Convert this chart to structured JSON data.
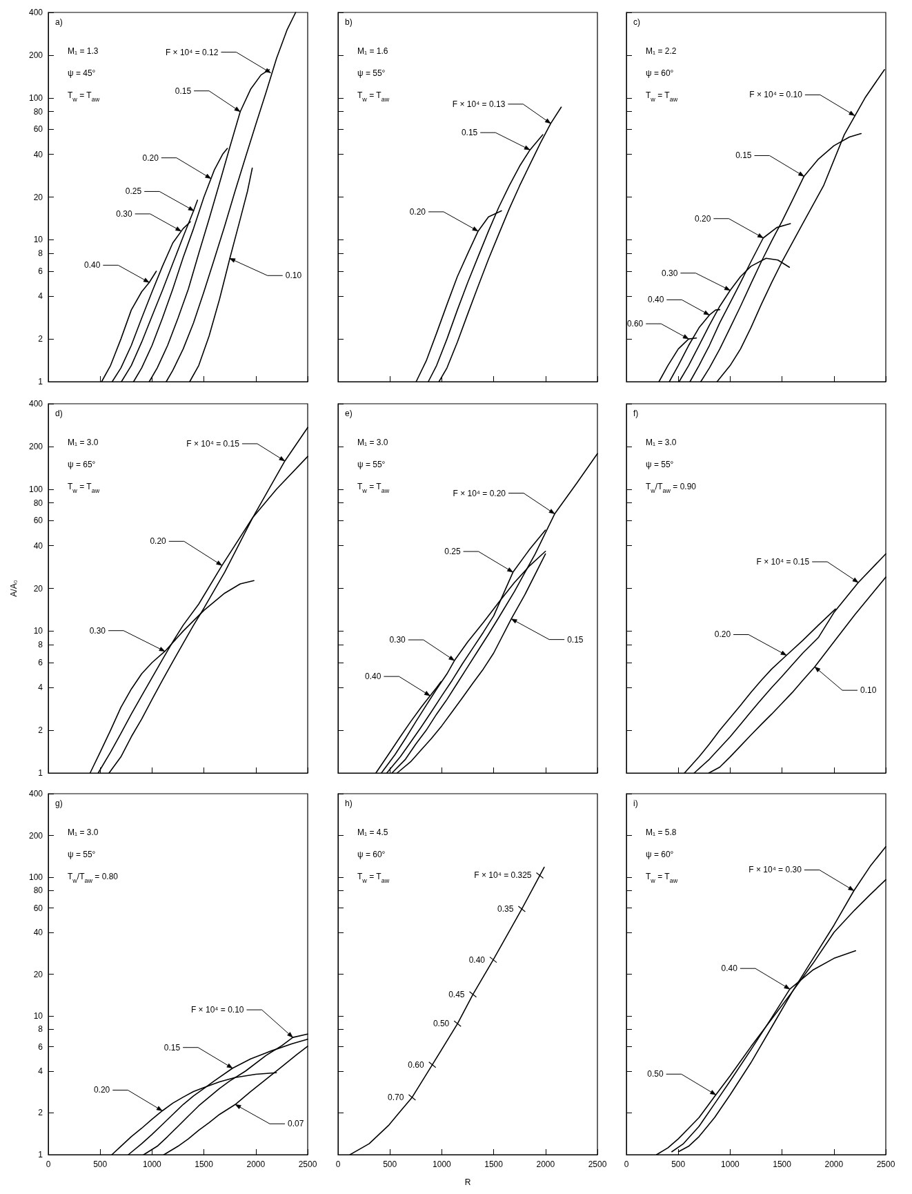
{
  "chart_data": [
    {
      "type": "line",
      "log": "y",
      "tick_labels": "y",
      "xlim": [
        0,
        2500
      ],
      "ylim": [
        1,
        400
      ],
      "xticks": [
        0,
        500,
        1000,
        1500,
        2000,
        2500
      ],
      "yticks": [
        1,
        2,
        4,
        6,
        8,
        10,
        20,
        40,
        60,
        80,
        100,
        200,
        400
      ],
      "annotations": [
        "a)",
        "M₁ = 1.3",
        "ψ = 45°",
        "T$_{w}$ = T$_{aw}$",
        {
          "text": "F × 10⁴ = 0.12",
          "x": 2144,
          "y": 150
        },
        {
          "text": "0.15",
          "x": 1849,
          "y": 80
        },
        {
          "text": "0.20",
          "x": 1568,
          "y": 27
        },
        {
          "text": "0.25",
          "x": 1404,
          "y": 16
        },
        {
          "text": "0.30",
          "x": 1281,
          "y": 11.5
        },
        {
          "text": "0.40",
          "x": 973,
          "y": 5.0
        },
        {
          "text": "0.10",
          "x": 1747,
          "y": 7.4
        }
      ],
      "series": [
        {
          "color": "#000000",
          "x": [
            1137,
            1200,
            1300,
            1400,
            1500,
            1600,
            1700,
            1800,
            1900,
            2000,
            2100,
            2200,
            2300,
            2384
          ],
          "values": [
            1,
            1.2,
            1.7,
            2.6,
            4.3,
            7.3,
            12.5,
            22,
            38,
            65,
            110,
            190,
            300,
            400
          ]
        },
        {
          "color": "#000000",
          "x": [
            973,
            1050,
            1150,
            1250,
            1350,
            1450,
            1550,
            1650,
            1750,
            1850,
            1950,
            2050,
            2130
          ],
          "values": [
            1,
            1.25,
            1.8,
            2.8,
            4.5,
            8,
            14,
            25,
            45,
            80,
            115,
            145,
            158
          ]
        },
        {
          "color": "#000000",
          "x": [
            822,
            900,
            1000,
            1100,
            1200,
            1300,
            1400,
            1500,
            1600,
            1680,
            1726
          ],
          "values": [
            1,
            1.25,
            1.8,
            2.8,
            4.5,
            7.5,
            12,
            20,
            31,
            40,
            44
          ]
        },
        {
          "color": "#000000",
          "x": [
            705,
            800,
            900,
            1000,
            1100,
            1200,
            1300,
            1400,
            1438
          ],
          "values": [
            1,
            1.3,
            1.9,
            2.9,
            4.4,
            6.8,
            10.5,
            16,
            19
          ]
        },
        {
          "color": "#000000",
          "x": [
            616,
            700,
            800,
            900,
            1000,
            1100,
            1200,
            1300,
            1370
          ],
          "values": [
            1,
            1.25,
            1.8,
            2.8,
            4.3,
            6.5,
            9.5,
            12,
            13.4
          ]
        },
        {
          "color": "#000000",
          "x": [
            514,
            600,
            700,
            800,
            900,
            973,
            1041
          ],
          "values": [
            1,
            1.3,
            2,
            3.2,
            4.3,
            5.0,
            6
          ]
        },
        {
          "color": "#000000",
          "x": [
            1363,
            1450,
            1550,
            1650,
            1750,
            1850,
            1920,
            1966
          ],
          "values": [
            1,
            1.3,
            2.1,
            3.8,
            7.4,
            14,
            22,
            32
          ]
        }
      ]
    },
    {
      "type": "line",
      "log": "y",
      "tick_labels": false,
      "xlim": [
        0,
        2500
      ],
      "ylim": [
        1,
        400
      ],
      "xticks": [
        0,
        500,
        1000,
        1500,
        2000,
        2500
      ],
      "yticks": [
        1,
        2,
        4,
        6,
        8,
        10,
        20,
        40,
        60,
        80,
        100,
        200,
        400
      ],
      "annotations": [
        "b)",
        "M₁ = 1.6",
        "ψ = 55°",
        "T$_{w}$ = T$_{aw}$",
        {
          "text": "F × 10⁴ = 0.13",
          "x": 2050,
          "y": 66
        },
        {
          "text": "0.15",
          "x": 1850,
          "y": 43
        },
        {
          "text": "0.20",
          "x": 1350,
          "y": 11.5
        }
      ],
      "series": [
        {
          "color": "#000000",
          "x": [
            973,
            1050,
            1150,
            1250,
            1350,
            1450,
            1550,
            1650,
            1750,
            1850,
            1950,
            2050,
            2151
          ],
          "values": [
            1,
            1.25,
            1.9,
            3,
            4.7,
            7.3,
            11,
            16.5,
            24,
            34,
            48,
            66,
            86
          ]
        },
        {
          "color": "#000000",
          "x": [
            870,
            950,
            1050,
            1150,
            1250,
            1350,
            1450,
            1550,
            1650,
            1750,
            1850,
            1973
          ],
          "values": [
            1,
            1.3,
            2,
            3.2,
            5,
            7.6,
            11.5,
            17,
            24,
            33,
            43,
            55
          ]
        },
        {
          "color": "#000000",
          "x": [
            753,
            850,
            950,
            1050,
            1150,
            1250,
            1350,
            1450,
            1575
          ],
          "values": [
            1,
            1.4,
            2.2,
            3.5,
            5.5,
            8,
            11.5,
            14.5,
            16
          ]
        }
      ]
    },
    {
      "type": "line",
      "log": "y",
      "tick_labels": false,
      "xlim": [
        0,
        2500
      ],
      "ylim": [
        1,
        400
      ],
      "xticks": [
        0,
        500,
        1000,
        1500,
        2000,
        2500
      ],
      "yticks": [
        1,
        2,
        4,
        6,
        8,
        10,
        20,
        40,
        60,
        80,
        100,
        200,
        400
      ],
      "annotations": [
        "c)",
        "M₁ = 2.2",
        "ψ = 60°",
        "T$_{w}$ = T$_{aw}$",
        {
          "text": "F × 10⁴ = 0.10",
          "x": 2200,
          "y": 75
        },
        {
          "text": "0.15",
          "x": 1712,
          "y": 28
        },
        {
          "text": "0.20",
          "x": 1319,
          "y": 10.3
        },
        {
          "text": "0.30",
          "x": 1000,
          "y": 4.4
        },
        {
          "text": "0.40",
          "x": 800,
          "y": 2.95
        },
        {
          "text": "0.60",
          "x": 600,
          "y": 2.0
        }
      ],
      "series": [
        {
          "color": "#000000",
          "x": [
            874,
            1000,
            1100,
            1200,
            1300,
            1400,
            1500,
            1700,
            1900,
            2100,
            2300,
            2487
          ],
          "values": [
            1,
            1.3,
            1.7,
            2.4,
            3.5,
            5,
            7,
            13,
            24,
            55,
            100,
            158
          ]
        },
        {
          "color": "#000000",
          "x": [
            717,
            800,
            900,
            1000,
            1100,
            1200,
            1300,
            1400,
            1500,
            1600,
            1712,
            1850,
            2000,
            2150,
            2262
          ],
          "values": [
            1,
            1.25,
            1.7,
            2.4,
            3.4,
            4.9,
            7,
            9.8,
            13.5,
            19,
            28,
            37,
            46,
            53,
            56
          ]
        },
        {
          "color": "#000000",
          "x": [
            613,
            700,
            800,
            900,
            1000,
            1100,
            1200,
            1319,
            1450,
            1581
          ],
          "values": [
            1,
            1.3,
            1.8,
            2.6,
            3.6,
            5,
            7,
            10.3,
            12.2,
            13
          ]
        },
        {
          "color": "#000000",
          "x": [
            508,
            600,
            700,
            800,
            900,
            1000,
            1100,
            1200,
            1346,
            1460,
            1571
          ],
          "values": [
            1,
            1.3,
            1.8,
            2.5,
            3.4,
            4.4,
            5.5,
            6.5,
            7.4,
            7.2,
            6.4
          ]
        },
        {
          "color": "#000000",
          "x": [
            414,
            500,
            600,
            700,
            800,
            860,
            900
          ],
          "values": [
            1,
            1.3,
            1.8,
            2.4,
            2.95,
            3.2,
            3.22
          ]
        },
        {
          "color": "#000000",
          "x": [
            314,
            400,
            500,
            600,
            675
          ],
          "values": [
            1,
            1.3,
            1.7,
            2.0,
            2.03
          ]
        }
      ]
    },
    {
      "type": "line",
      "log": "y",
      "tick_labels": "y",
      "ylabel": "A/A₀",
      "xlim": [
        0,
        2500
      ],
      "ylim": [
        1,
        400
      ],
      "xticks": [
        0,
        500,
        1000,
        1500,
        2000,
        2500
      ],
      "yticks": [
        1,
        2,
        4,
        6,
        8,
        10,
        20,
        40,
        60,
        80,
        100,
        200,
        400
      ],
      "annotations": [
        "d)",
        "M₁ = 3.0",
        "ψ = 65°",
        "T$_{w}$ = T$_{aw}$",
        {
          "text": "F × 10⁴ = 0.15",
          "x": 2280,
          "y": 158
        },
        {
          "text": "0.20",
          "x": 1674,
          "y": 29
        },
        {
          "text": "0.30",
          "x": 1124,
          "y": 7.2
        }
      ],
      "series": [
        {
          "color": "#000000",
          "x": [
            586,
            700,
            800,
            900,
            1000,
            1100,
            1200,
            1300,
            1400,
            1500,
            1700,
            1970,
            2280,
            2500
          ],
          "values": [
            1,
            1.3,
            1.8,
            2.4,
            3.3,
            4.5,
            6.1,
            8.2,
            11,
            14.5,
            26,
            63,
            158,
            272
          ]
        },
        {
          "color": "#000000",
          "x": [
            481,
            600,
            700,
            800,
            900,
            1000,
            1100,
            1200,
            1300,
            1450,
            1674,
            1970,
            2200,
            2500
          ],
          "values": [
            1,
            1.4,
            1.9,
            2.6,
            3.5,
            4.7,
            6.3,
            8.4,
            11,
            15.5,
            29,
            63,
            100,
            170
          ]
        },
        {
          "color": "#000000",
          "x": [
            403,
            500,
            600,
            700,
            800,
            900,
            1000,
            1124,
            1300,
            1500,
            1700,
            1850,
            1982
          ],
          "values": [
            1,
            1.4,
            2,
            2.9,
            3.9,
            5,
            6,
            7.2,
            10,
            14,
            18.5,
            21.5,
            22.7
          ]
        }
      ]
    },
    {
      "type": "line",
      "log": "y",
      "tick_labels": false,
      "xlim": [
        0,
        2500
      ],
      "ylim": [
        1,
        400
      ],
      "xticks": [
        0,
        500,
        1000,
        1500,
        2000,
        2500
      ],
      "yticks": [
        1,
        2,
        4,
        6,
        8,
        10,
        20,
        40,
        60,
        80,
        100,
        200,
        400
      ],
      "annotations": [
        "e)",
        "M₁ = 3.0",
        "ψ = 55°",
        "T$_{w}$ = T$_{aw}$",
        {
          "text": "F × 10⁴ = 0.20",
          "x": 2088,
          "y": 67
        },
        {
          "text": "0.25",
          "x": 1686,
          "y": 26
        },
        {
          "text": "0.30",
          "x": 1122,
          "y": 6.2
        },
        {
          "text": "0.40",
          "x": 887,
          "y": 3.5
        },
        {
          "text": "0.15",
          "x": 1670,
          "y": 12.2
        }
      ],
      "series": [
        {
          "color": "#000000",
          "x": [
            520,
            650,
            750,
            850,
            950,
            1050,
            1150,
            1250,
            1350,
            1450,
            1550,
            1700,
            1900,
            2088,
            2300,
            2500
          ],
          "values": [
            1,
            1.25,
            1.6,
            2,
            2.6,
            3.3,
            4.3,
            5.6,
            7.3,
            9.5,
            12.5,
            19,
            35,
            67,
            110,
            178
          ]
        },
        {
          "color": "#000000",
          "x": [
            470,
            600,
            700,
            800,
            900,
            1000,
            1100,
            1200,
            1300,
            1400,
            1500,
            1686,
            1850,
            1999
          ],
          "values": [
            1,
            1.3,
            1.65,
            2.1,
            2.7,
            3.5,
            4.5,
            5.9,
            7.6,
            9.8,
            12.8,
            26,
            38,
            51.5
          ]
        },
        {
          "color": "#000000",
          "x": [
            418,
            550,
            650,
            750,
            850,
            950,
            1050,
            1122,
            1250,
            1400,
            1550,
            1700,
            1850,
            1999
          ],
          "values": [
            1,
            1.35,
            1.75,
            2.3,
            3,
            3.9,
            5,
            6.2,
            8.4,
            11.5,
            16,
            22,
            29,
            36.5
          ]
        },
        {
          "color": "#000000",
          "x": [
            365,
            500,
            600,
            700,
            800,
            887,
            950,
            992
          ],
          "values": [
            1,
            1.4,
            1.8,
            2.3,
            2.9,
            3.5,
            4.0,
            4.4
          ]
        },
        {
          "color": "#000000",
          "x": [
            570,
            700,
            800,
            900,
            1000,
            1100,
            1200,
            1300,
            1400,
            1500,
            1670,
            1800,
            1999
          ],
          "values": [
            1,
            1.2,
            1.45,
            1.75,
            2.15,
            2.7,
            3.4,
            4.3,
            5.4,
            7.0,
            12.2,
            18,
            35
          ]
        }
      ]
    },
    {
      "type": "line",
      "log": "y",
      "tick_labels": false,
      "xlim": [
        0,
        2500
      ],
      "ylim": [
        1,
        400
      ],
      "xticks": [
        0,
        500,
        1000,
        1500,
        2000,
        2500
      ],
      "yticks": [
        1,
        2,
        4,
        6,
        8,
        10,
        20,
        40,
        60,
        80,
        100,
        200,
        400
      ],
      "annotations": [
        "f)",
        "M₁ = 3.0",
        "ψ = 55°",
        "T$_{w}$/T$_{aw}$ = 0.90",
        {
          "text": "F × 10⁴ = 0.15",
          "x": 2235,
          "y": 22
        },
        {
          "text": "0.20",
          "x": 1543,
          "y": 6.75
        },
        {
          "text": "0.10",
          "x": 1815,
          "y": 5.6
        }
      ],
      "series": [
        {
          "color": "#000000",
          "x": [
            654,
            800,
            900,
            1000,
            1100,
            1200,
            1300,
            1400,
            1500,
            1600,
            1700,
            1850,
            2000,
            2235,
            2500
          ],
          "values": [
            1,
            1.25,
            1.5,
            1.8,
            2.2,
            2.7,
            3.3,
            4.0,
            4.8,
            5.8,
            7,
            9,
            13.5,
            22,
            35
          ]
        },
        {
          "color": "#000000",
          "x": [
            560,
            700,
            800,
            900,
            1000,
            1100,
            1200,
            1300,
            1400,
            1543,
            1700,
            1850,
            2015
          ],
          "values": [
            1,
            1.3,
            1.6,
            2.0,
            2.45,
            3.0,
            3.7,
            4.5,
            5.4,
            6.75,
            8.6,
            11,
            14.3
          ]
        },
        {
          "color": "#000000",
          "x": [
            795,
            900,
            1000,
            1100,
            1200,
            1300,
            1400,
            1500,
            1600,
            1700,
            1815,
            2000,
            2200,
            2500
          ],
          "values": [
            1,
            1.1,
            1.3,
            1.55,
            1.85,
            2.2,
            2.6,
            3.1,
            3.7,
            4.5,
            5.6,
            8.4,
            13,
            24
          ]
        }
      ]
    },
    {
      "type": "line",
      "log": "y",
      "xlim": [
        0,
        2500
      ],
      "ylim": [
        1,
        400
      ],
      "xticks": [
        0,
        500,
        1000,
        1500,
        2000,
        2500
      ],
      "yticks": [
        1,
        2,
        4,
        6,
        8,
        10,
        20,
        40,
        60,
        80,
        100,
        200,
        400
      ],
      "annotations": [
        "g)",
        "M₁ = 3.0",
        "ψ = 55°",
        "T$_{w}$/T$_{aw}$ = 0.80",
        {
          "text": "F × 10⁴ = 0.10",
          "x": 2357,
          "y": 7.0
        },
        {
          "text": "0.15",
          "x": 1776,
          "y": 4.2
        },
        {
          "text": "0.20",
          "x": 1099,
          "y": 2.07
        },
        {
          "text": "0.07",
          "x": 1802,
          "y": 2.3
        }
      ],
      "series": [
        {
          "color": "#000000",
          "x": [
            920,
            1050,
            1150,
            1250,
            1350,
            1450,
            1550,
            1650,
            1750,
            1900,
            2100,
            2250,
            2357,
            2500
          ],
          "values": [
            1,
            1.15,
            1.35,
            1.6,
            1.9,
            2.25,
            2.6,
            3.0,
            3.4,
            4.0,
            5.2,
            6.1,
            7.0,
            7.4
          ]
        },
        {
          "color": "#000000",
          "x": [
            772,
            900,
            1000,
            1100,
            1200,
            1300,
            1400,
            1500,
            1600,
            1776,
            1950,
            2150,
            2350,
            2500
          ],
          "values": [
            1,
            1.2,
            1.4,
            1.65,
            1.95,
            2.3,
            2.65,
            3.0,
            3.4,
            4.2,
            4.9,
            5.6,
            6.3,
            6.8
          ]
        },
        {
          "color": "#000000",
          "x": [
            613,
            700,
            800,
            900,
            1000,
            1099,
            1200,
            1300,
            1400,
            1500,
            1650,
            1800,
            2000,
            2199
          ],
          "values": [
            1,
            1.15,
            1.35,
            1.55,
            1.8,
            2.07,
            2.35,
            2.6,
            2.85,
            3.05,
            3.35,
            3.6,
            3.8,
            3.9
          ]
        },
        {
          "color": "#000000",
          "x": [
            1115,
            1250,
            1350,
            1450,
            1550,
            1650,
            1802,
            1950,
            2100,
            2250,
            2400,
            2500
          ],
          "values": [
            1,
            1.15,
            1.3,
            1.5,
            1.7,
            1.95,
            2.3,
            2.85,
            3.5,
            4.3,
            5.3,
            6.05
          ]
        }
      ]
    },
    {
      "type": "line",
      "log": "y",
      "tick_labels": "x",
      "xlabel": "R",
      "xlim": [
        0,
        2500
      ],
      "ylim": [
        1,
        400
      ],
      "xticks": [
        0,
        500,
        1000,
        1500,
        2000,
        2500
      ],
      "yticks": [
        1,
        2,
        4,
        6,
        8,
        10,
        20,
        40,
        60,
        80,
        100,
        200,
        400
      ],
      "annotations": [
        "h)",
        "M₁ = 4.5",
        "ψ = 60°",
        "T$_{w}$ = T$_{aw}$",
        {
          "text": "F × 10⁴ = 0.325",
          "x": 1945,
          "y": 103
        },
        {
          "text": "0.35",
          "x": 1771,
          "y": 59
        },
        {
          "text": "0.40",
          "x": 1496,
          "y": 25.4
        },
        {
          "text": "0.45",
          "x": 1300,
          "y": 14.3
        },
        {
          "text": "0.50",
          "x": 1152,
          "y": 8.8
        },
        {
          "text": "0.60",
          "x": 909,
          "y": 4.45
        },
        {
          "text": "0.70",
          "x": 714,
          "y": 2.59
        }
      ],
      "series": [
        {
          "color": "#000000",
          "x": [
            116,
            300,
            492,
            600,
            714,
            909,
            1152,
            1300,
            1496,
            1771,
            1945,
            1987
          ],
          "values": [
            1,
            1.2,
            1.64,
            2.05,
            2.59,
            4.45,
            8.8,
            14.3,
            25.4,
            59,
            103,
            118
          ]
        }
      ]
    },
    {
      "type": "line",
      "log": "y",
      "tick_labels": "x",
      "xlim": [
        0,
        2500
      ],
      "ylim": [
        1,
        400
      ],
      "xticks": [
        0,
        500,
        1000,
        1500,
        2000,
        2500
      ],
      "yticks": [
        1,
        2,
        4,
        6,
        8,
        10,
        20,
        40,
        60,
        80,
        100,
        200,
        400
      ],
      "annotations": [
        "i)",
        "M₁ = 5.8",
        "ψ = 60°",
        "T$_{w}$ = T$_{aw}$",
        {
          "text": "F × 10⁴ = 0.30",
          "x": 2193,
          "y": 80
        },
        {
          "text": "0.40",
          "x": 1575,
          "y": 15.6
        },
        {
          "text": "0.50",
          "x": 862,
          "y": 2.7
        }
      ],
      "series": [
        {
          "color": "#000000",
          "x": [
            502,
            600,
            700,
            850,
            1000,
            1200,
            1400,
            1600,
            1800,
            2000,
            2193,
            2350,
            2500
          ],
          "values": [
            1.05,
            1.15,
            1.35,
            1.85,
            2.7,
            4.6,
            8.3,
            15,
            26,
            45,
            80,
            120,
            166
          ]
        },
        {
          "color": "#000000",
          "x": [
            438,
            550,
            700,
            862,
            1000,
            1200,
            1400,
            1575,
            1800,
            2000,
            2209
          ],
          "values": [
            1.05,
            1.2,
            1.6,
            2.4,
            3.4,
            5.7,
            9.7,
            15.6,
            21.5,
            26,
            29.5
          ]
        },
        {
          "color": "#000000",
          "x": [
            291,
            400,
            500,
            600,
            700,
            862,
            1000,
            1200,
            1400,
            1600,
            1800,
            2000,
            2200,
            2350,
            2500
          ],
          "values": [
            1,
            1.12,
            1.3,
            1.55,
            1.85,
            2.7,
            3.7,
            6,
            9.5,
            15,
            24,
            40,
            58,
            75,
            96
          ]
        }
      ]
    }
  ]
}
